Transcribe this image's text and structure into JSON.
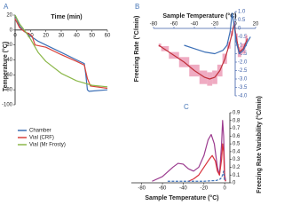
{
  "chart_data": [
    {
      "type": "line",
      "panel": "A",
      "xlabel": "Time (min)",
      "ylabel": "Temperature (°C)",
      "xlim": [
        0,
        60
      ],
      "xticks": [
        0,
        10,
        20,
        30,
        40,
        50,
        60
      ],
      "ylim": [
        -100,
        20
      ],
      "yticks": [
        20,
        0,
        -20,
        -40,
        -60,
        -80,
        -100
      ],
      "axis_color": "#222222",
      "legend": "lower left",
      "series": [
        {
          "name": "Chamber",
          "color": "#3b6fb6",
          "x": [
            0,
            3,
            6,
            10,
            15,
            20,
            30,
            40,
            45,
            46,
            47,
            48,
            60
          ],
          "values": [
            20,
            5,
            -2,
            -8,
            -15,
            -20,
            -30,
            -40,
            -45,
            -60,
            -80,
            -82,
            -80
          ]
        },
        {
          "name": "Vial (CRF)",
          "color": "#d9413a",
          "x": [
            0,
            3,
            6,
            9,
            11,
            13,
            20,
            30,
            40,
            45,
            47,
            49,
            60
          ],
          "values": [
            15,
            3,
            -2,
            -5,
            -8,
            -20,
            -23,
            -33,
            -42,
            -47,
            -65,
            -75,
            -78
          ]
        },
        {
          "name": "Vial (Mr Frosty)",
          "color": "#8cb84a",
          "x": [
            0,
            3,
            6,
            10,
            15,
            20,
            30,
            40,
            50,
            60
          ],
          "values": [
            20,
            8,
            0,
            -12,
            -30,
            -42,
            -58,
            -68,
            -74,
            -76
          ]
        }
      ]
    },
    {
      "type": "line",
      "panel": "B",
      "xlabel": "Sample Temperature (°C)",
      "ylabel": "Freezing Rate (°C/min)",
      "xlim": [
        -80,
        20
      ],
      "xticks": [
        -80,
        -60,
        -40,
        -20,
        0,
        20
      ],
      "ylim": [
        -4,
        1
      ],
      "yticks": [
        {
          "value": 1,
          "label": "1.0"
        },
        0.5,
        0,
        -0.5,
        {
          "value": -1,
          "label": "-1.0"
        },
        -1.5,
        {
          "value": -2,
          "label": "-2.0"
        },
        -2.5,
        {
          "value": -3,
          "label": "-3.0"
        },
        -3.5,
        {
          "value": -4,
          "label": "-4.0"
        }
      ],
      "axis_color": "#3b5ea8",
      "series": [
        {
          "color": "#c0303a",
          "band_color": "#e887a8",
          "x": [
            -75,
            -70,
            -60,
            -50,
            -40,
            -30,
            -25,
            -20,
            -15,
            -10,
            -6,
            -3,
            -1,
            1,
            4,
            8,
            12
          ],
          "values": [
            -1.0,
            -1.2,
            -1.6,
            -2.0,
            -2.5,
            -2.9,
            -3.0,
            -2.9,
            -2.5,
            -1.8,
            -1.0,
            -0.3,
            0.3,
            -0.5,
            -1.4,
            -1.2,
            -0.6
          ],
          "errors": [
            0.1,
            0.15,
            0.2,
            0.3,
            0.35,
            0.4,
            0.4,
            0.4,
            0.35,
            0.3,
            0.2,
            0.15,
            0.1,
            0.2,
            0.3,
            0.3,
            0.2
          ]
        },
        {
          "color": "#3b6fb6",
          "x": [
            -50,
            -40,
            -30,
            -20,
            -12,
            -8,
            -5,
            -3,
            -1,
            1,
            4,
            8,
            12,
            15
          ],
          "values": [
            -1.0,
            -1.2,
            -1.4,
            -1.5,
            -1.3,
            -1.0,
            -0.2,
            0.9,
            0.2,
            -0.8,
            -1.5,
            -1.3,
            -0.8,
            -0.5
          ]
        }
      ]
    },
    {
      "type": "line",
      "panel": "C",
      "xlabel": "Sample Temperature (°C)",
      "ylabel": "Freezing Rate Variability (°C/min)",
      "xlim": [
        -90,
        5
      ],
      "xticks": [
        -80,
        -60,
        -40,
        -20,
        0
      ],
      "ylim": [
        0,
        0.9
      ],
      "yticks": [
        0,
        0.1,
        0.2,
        0.3,
        0.4,
        0.5,
        0.6,
        0.7,
        0.8,
        0.9
      ],
      "axis_color": "#222222",
      "series": [
        {
          "color": "#9b3a8e",
          "x": [
            -70,
            -60,
            -50,
            -45,
            -40,
            -35,
            -30,
            -25,
            -20,
            -16,
            -13,
            -10,
            -7,
            -5,
            -3,
            -2,
            -1,
            0,
            1
          ],
          "values": [
            0.02,
            0.08,
            0.2,
            0.25,
            0.24,
            0.18,
            0.15,
            0.2,
            0.35,
            0.55,
            0.62,
            0.5,
            0.2,
            0.1,
            0.5,
            0.8,
            0.6,
            0.1,
            0.02
          ]
        },
        {
          "color": "#d9303a",
          "x": [
            -35,
            -30,
            -25,
            -20,
            -15,
            -12,
            -9,
            -7,
            -5,
            -3,
            -2,
            -1,
            0,
            1
          ],
          "values": [
            0.02,
            0.05,
            0.1,
            0.2,
            0.3,
            0.35,
            0.28,
            0.15,
            0.1,
            0.3,
            0.5,
            0.4,
            0.05,
            0.02
          ]
        },
        {
          "color": "#3b6fb6",
          "dash": true,
          "x": [
            -55,
            -40,
            -20,
            -8,
            -4,
            -2,
            -1,
            0
          ],
          "values": [
            0.02,
            0.02,
            0.02,
            0.03,
            0.05,
            0.1,
            0.15,
            0.02
          ]
        }
      ]
    }
  ]
}
